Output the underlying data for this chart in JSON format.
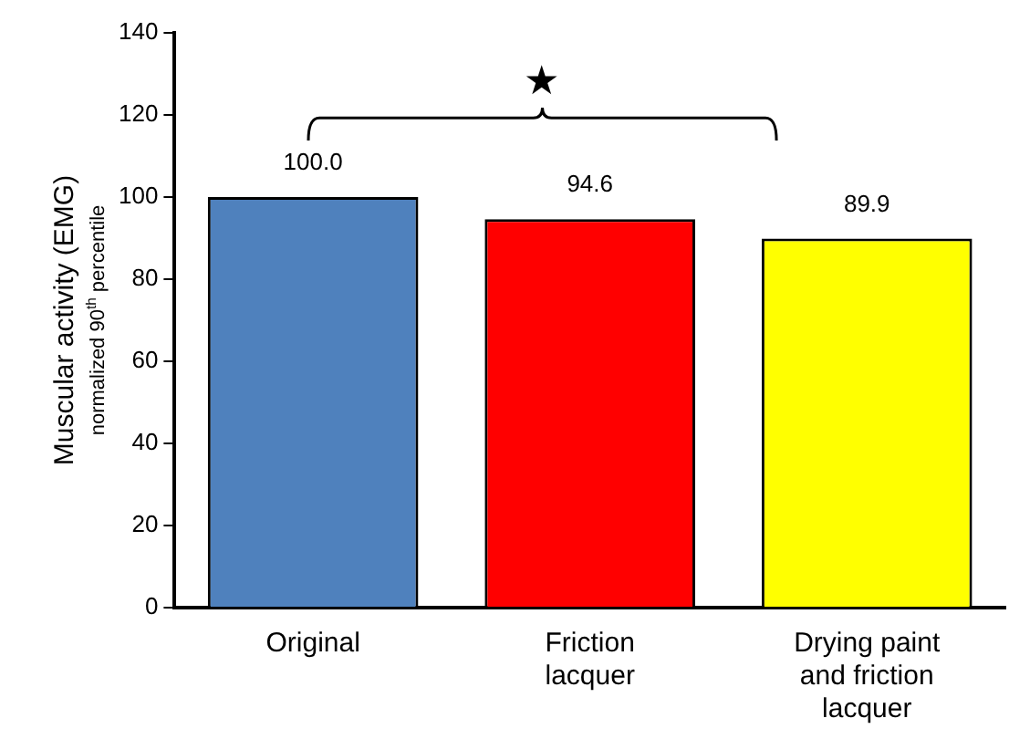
{
  "chart_data": {
    "type": "bar",
    "ylabel": "Muscular activity (EMG)\nnormalized 90$^{th}$ percentile",
    "categories": [
      "Original",
      "Friction lacquer",
      "Drying paint and friction lacquer"
    ],
    "values": [
      100.0,
      94.6,
      89.9
    ],
    "colors": [
      "#4f81bd",
      "#ff0000",
      "#ffff00"
    ],
    "value_labels": [
      "100.0",
      "94.6",
      "89.9"
    ],
    "ylim": [
      0,
      140
    ],
    "yticks": [
      0,
      20,
      40,
      60,
      80,
      100,
      120,
      140
    ],
    "grid": false,
    "legend": false,
    "annotations": [
      "★"
    ]
  }
}
